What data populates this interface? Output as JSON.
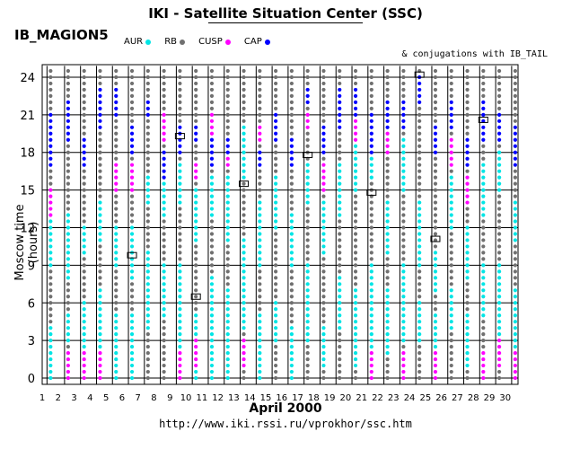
{
  "header": {
    "title": "IKI - Satellite Situation Center (SSC)",
    "satellite": "IB_MAGION5",
    "conjugations_note": "& conjugations with IB_TAIL"
  },
  "footer": {
    "url": "http://www.iki.rssi.ru/vprokhor/ssc.htm"
  },
  "legend": [
    {
      "label": "AUR",
      "color": "#00e5e5"
    },
    {
      "label": "RB",
      "color": "#707070"
    },
    {
      "label": "CUSP",
      "color": "#ff00ff"
    },
    {
      "label": "CAP",
      "color": "#0000ff"
    }
  ],
  "chart_data": {
    "type": "scatter",
    "title": "IKI - Satellite Situation Center (SSC)",
    "xlabel": "April    2000",
    "ylabel": "Moscow time (hours)",
    "x_ticks": [
      1,
      2,
      3,
      4,
      5,
      6,
      7,
      8,
      9,
      10,
      11,
      12,
      13,
      14,
      15,
      16,
      17,
      18,
      19,
      20,
      21,
      22,
      23,
      24,
      25,
      26,
      27,
      28,
      29,
      30
    ],
    "y_ticks": [
      0,
      3,
      6,
      9,
      12,
      15,
      18,
      21,
      24
    ],
    "xlim": [
      1,
      30.8
    ],
    "ylim": [
      -0.5,
      25
    ],
    "grid": "horizontal at 3h",
    "region_colors": {
      "AUR": "#00e5e5",
      "RB": "#707070",
      "CUSP": "#ff00ff",
      "CAP": "#0000ff"
    },
    "series": [
      {
        "name": "AUR",
        "segments": [
          [
            1.3,
            0,
            4
          ],
          [
            1.3,
            9,
            14
          ],
          [
            2.4,
            8,
            13
          ],
          [
            2.4,
            3,
            5
          ],
          [
            3.4,
            2,
            6
          ],
          [
            3.4,
            10,
            12
          ],
          [
            4.4,
            2,
            7
          ],
          [
            4.4,
            11,
            14
          ],
          [
            5.4,
            0,
            5
          ],
          [
            5.4,
            9,
            12
          ],
          [
            6.4,
            0,
            5
          ],
          [
            6.4,
            8,
            12
          ],
          [
            7.4,
            4,
            10
          ],
          [
            7.4,
            14,
            16
          ],
          [
            8.4,
            5,
            9
          ],
          [
            8.4,
            13,
            16
          ],
          [
            9.4,
            2,
            9
          ],
          [
            9.4,
            14,
            17
          ],
          [
            10.4,
            0,
            5
          ],
          [
            10.4,
            11,
            15
          ],
          [
            11.4,
            0,
            8
          ],
          [
            11.4,
            13,
            16
          ],
          [
            12.4,
            0,
            7
          ],
          [
            12.4,
            11,
            16
          ],
          [
            13.4,
            4,
            11
          ],
          [
            13.4,
            16,
            20
          ],
          [
            14.4,
            0,
            5
          ],
          [
            14.4,
            9,
            14
          ],
          [
            15.4,
            3,
            6
          ],
          [
            15.4,
            12,
            16
          ],
          [
            16.4,
            0,
            4
          ],
          [
            16.4,
            9,
            13
          ],
          [
            17.4,
            3,
            9
          ],
          [
            17.4,
            14,
            17
          ],
          [
            18.4,
            1,
            4
          ],
          [
            18.4,
            10,
            14
          ],
          [
            19.4,
            4,
            8
          ],
          [
            19.4,
            13,
            17
          ],
          [
            20.4,
            1,
            7
          ],
          [
            20.4,
            15,
            19
          ],
          [
            21.4,
            2,
            9
          ],
          [
            21.4,
            16,
            18
          ],
          [
            22.4,
            2,
            7
          ],
          [
            22.4,
            10,
            14
          ],
          [
            23.4,
            3,
            9
          ],
          [
            23.4,
            15,
            19
          ],
          [
            24.4,
            3,
            6
          ],
          [
            24.4,
            9,
            14
          ],
          [
            25.4,
            2,
            5
          ],
          [
            25.4,
            7,
            10
          ],
          [
            26.4,
            4,
            7
          ],
          [
            26.4,
            12,
            16
          ],
          [
            27.4,
            1,
            5
          ],
          [
            27.4,
            8,
            12
          ],
          [
            28.4,
            5,
            9
          ],
          [
            28.4,
            13,
            17
          ],
          [
            29.4,
            3,
            9
          ],
          [
            29.4,
            15,
            18
          ],
          [
            30.4,
            2,
            7
          ],
          [
            30.4,
            11,
            14
          ]
        ]
      },
      {
        "name": "CUSP",
        "segments": [
          [
            1.3,
            13,
            15
          ],
          [
            2.4,
            0,
            2
          ],
          [
            3.4,
            0,
            2
          ],
          [
            4.4,
            0,
            2
          ],
          [
            5.4,
            15,
            17
          ],
          [
            6.4,
            15,
            17
          ],
          [
            8.4,
            19,
            21
          ],
          [
            9.4,
            0,
            2
          ],
          [
            10.4,
            1,
            3
          ],
          [
            10.4,
            16,
            17
          ],
          [
            11.4,
            19,
            21
          ],
          [
            12.4,
            17,
            19
          ],
          [
            13.4,
            1,
            3
          ],
          [
            14.4,
            19,
            20
          ],
          [
            17.4,
            20,
            21
          ],
          [
            18.4,
            15,
            17
          ],
          [
            20.4,
            19,
            21
          ],
          [
            21.4,
            0,
            2
          ],
          [
            22.4,
            18,
            20
          ],
          [
            23.4,
            0,
            2
          ],
          [
            25.4,
            0,
            2
          ],
          [
            26.4,
            17,
            19
          ],
          [
            27.4,
            14,
            16
          ],
          [
            28.4,
            0,
            2
          ],
          [
            29.4,
            1,
            3
          ],
          [
            30.4,
            0,
            2
          ]
        ]
      },
      {
        "name": "CAP",
        "segments": [
          [
            1.3,
            17,
            21
          ],
          [
            2.4,
            19,
            22
          ],
          [
            3.4,
            17,
            19
          ],
          [
            4.4,
            20,
            23
          ],
          [
            5.4,
            21,
            23
          ],
          [
            6.4,
            18,
            20
          ],
          [
            7.4,
            21,
            22
          ],
          [
            8.4,
            16,
            18
          ],
          [
            9.4,
            18,
            20
          ],
          [
            10.4,
            19,
            20
          ],
          [
            11.4,
            17,
            19
          ],
          [
            12.4,
            18,
            19
          ],
          [
            14.4,
            17,
            18
          ],
          [
            15.4,
            19,
            21
          ],
          [
            16.4,
            17,
            19
          ],
          [
            17.4,
            22,
            23
          ],
          [
            18.4,
            18,
            20
          ],
          [
            19.4,
            20,
            23
          ],
          [
            20.4,
            21,
            23
          ],
          [
            21.4,
            18,
            21
          ],
          [
            22.4,
            20,
            22
          ],
          [
            23.4,
            20,
            22
          ],
          [
            24.4,
            22,
            24
          ],
          [
            25.4,
            18,
            20
          ],
          [
            26.4,
            20,
            22
          ],
          [
            27.4,
            17,
            19
          ],
          [
            28.4,
            19,
            22
          ],
          [
            29.4,
            19,
            21
          ],
          [
            30.4,
            17,
            20
          ]
        ]
      }
    ],
    "conjugation_boxes": [
      [
        6.4,
        9.8
      ],
      [
        9.4,
        19.3
      ],
      [
        10.4,
        6.5
      ],
      [
        13.4,
        15.5
      ],
      [
        17.4,
        17.8
      ],
      [
        21.4,
        14.8
      ],
      [
        24.4,
        24.2
      ],
      [
        25.4,
        11.1
      ],
      [
        28.4,
        20.6
      ]
    ]
  }
}
